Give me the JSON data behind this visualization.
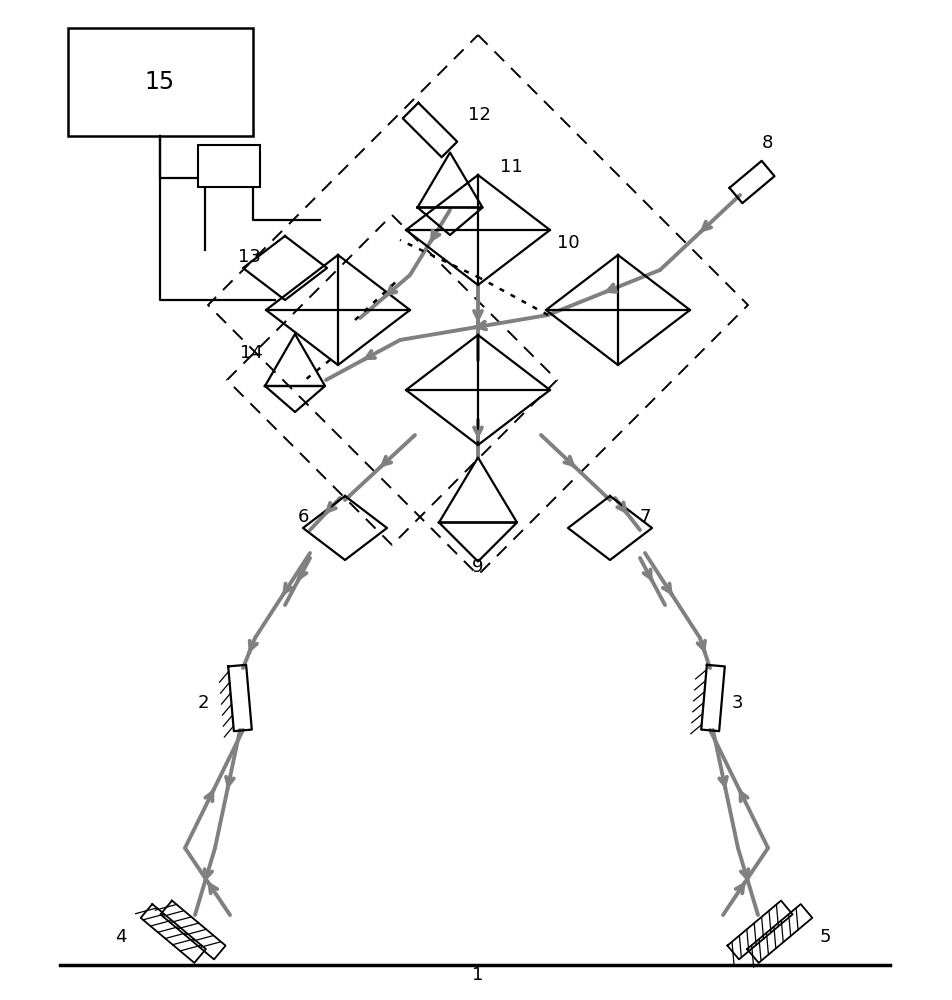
{
  "bg_color": "#ffffff",
  "gray": "#808080",
  "black": "#000000",
  "figsize": [
    9.53,
    10.0
  ],
  "dpi": 100,
  "lw_beam": 2.8,
  "lw_optic": 1.6,
  "lw_ground": 2.5,
  "lw_dash": 1.4,
  "arrow_scale": 14
}
